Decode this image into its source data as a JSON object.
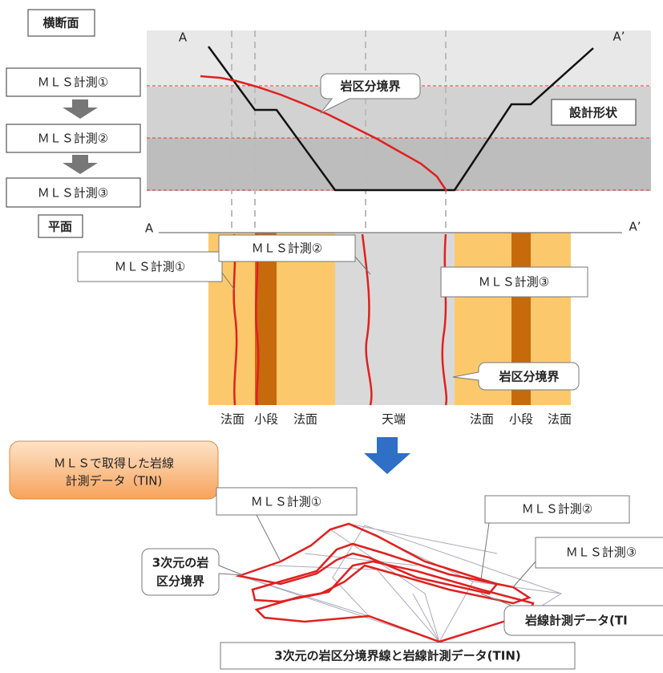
{
  "cross_section": {
    "title": "横断面",
    "steps": [
      "ＭＬＳ計測①",
      "ＭＬＳ計測②",
      "ＭＬＳ計測③"
    ],
    "label_a": "A",
    "label_a_prime": "A’",
    "boundary_callout": "岩区分境界",
    "design_callout": "設計形状"
  },
  "plan": {
    "title": "平面",
    "label_a": "A",
    "label_a_prime": "A’",
    "callouts": [
      "ＭＬＳ計測①",
      "ＭＬＳ計測②",
      "ＭＬＳ計測③",
      "岩区分境界"
    ],
    "zones": [
      "法面",
      "小段",
      "法面",
      "天端",
      "法面",
      "小段",
      "法面"
    ]
  },
  "tin": {
    "note_lines": [
      "ＭＬＳで取得した岩線",
      "計測データ（TIN)"
    ],
    "callouts": [
      "ＭＬＳ計測①",
      "ＭＬＳ計測②",
      "ＭＬＳ計測③"
    ],
    "boundary_lines": [
      "3次元の岩",
      "区分境界"
    ],
    "data_callout": "岩線計測データ(TI",
    "caption": "3次元の岩区分境界線と岩線計測データ(TIN)"
  }
}
